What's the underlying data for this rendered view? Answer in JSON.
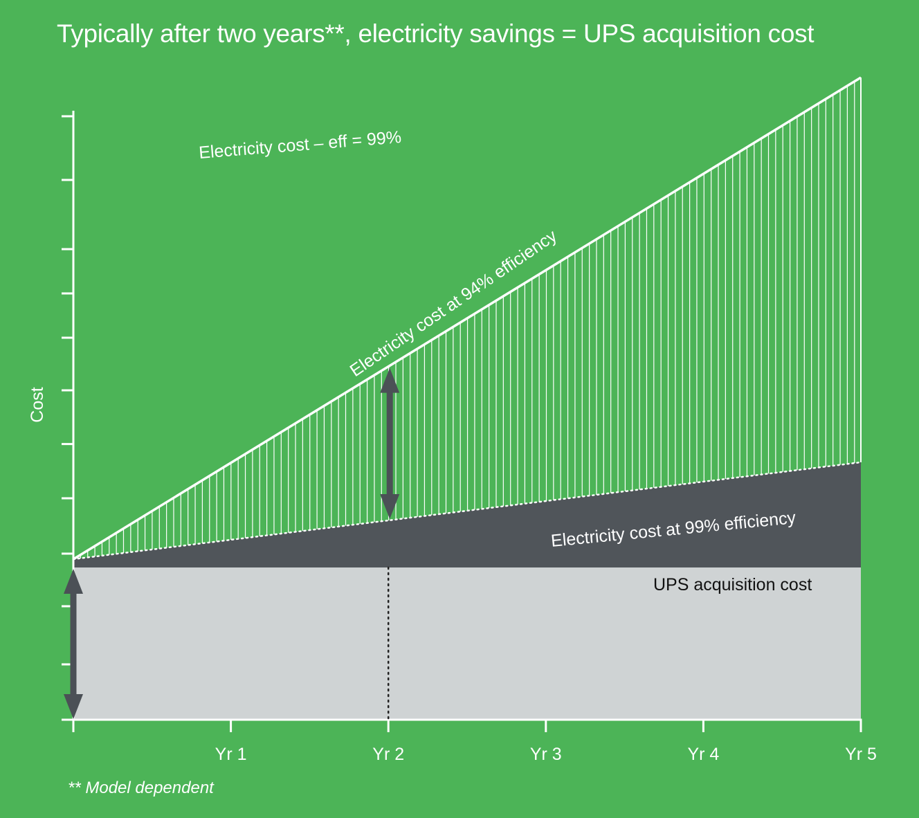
{
  "colors": {
    "background": "#4cb457",
    "axis": "#ffffff",
    "acquisition_fill": "#cfd3d4",
    "eff99_fill": "#50555a",
    "arrow": "#4b5056",
    "hatch": "#ffffff"
  },
  "chart_data": {
    "type": "area",
    "title": "Typically after two years**, electricity savings = UPS acquisition cost",
    "ylabel": "Cost",
    "xlabel": "",
    "x_ticks": [
      "Yr 1",
      "Yr 2",
      "Yr 3",
      "Yr 4",
      "Yr 5"
    ],
    "x": [
      0,
      1,
      2,
      3,
      4,
      5
    ],
    "xlim": [
      0,
      5
    ],
    "ylim": [
      0,
      11.5
    ],
    "grid": false,
    "y_tick_labels_shown": false,
    "series": [
      {
        "name": "UPS acquisition cost",
        "values": [
          2.75,
          2.75,
          2.75,
          2.75,
          2.75,
          2.75
        ]
      },
      {
        "name": "Electricity cost at 99% efficiency",
        "values": [
          2.9,
          3.25,
          3.6,
          3.95,
          4.3,
          4.65
        ]
      },
      {
        "name": "Electricity cost at 94% efficiency",
        "values": [
          2.9,
          4.64,
          6.38,
          8.12,
          9.86,
          11.6
        ]
      }
    ],
    "annotations": [
      {
        "text": "Electricity cost – eff = 99%",
        "position": "top-left"
      },
      {
        "text": "** Model dependent",
        "position": "bottom-left"
      }
    ]
  }
}
